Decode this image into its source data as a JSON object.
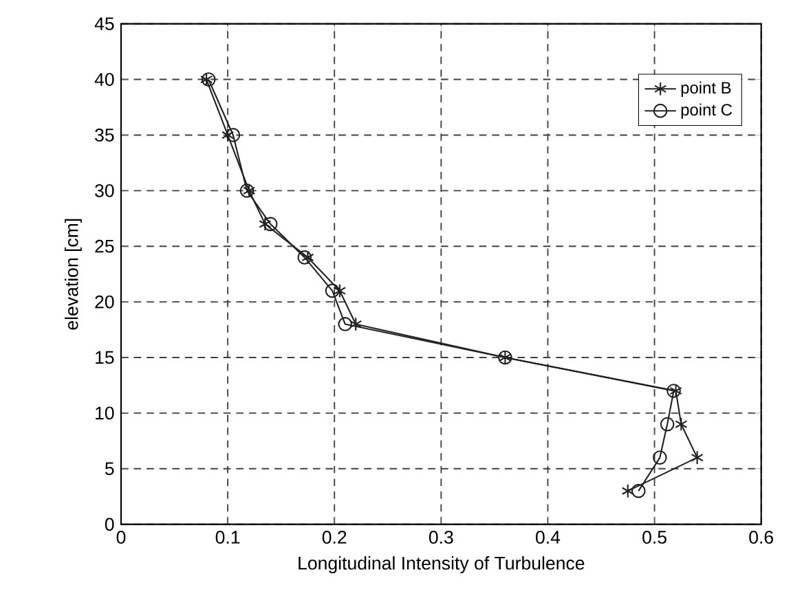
{
  "chart_data": {
    "type": "line",
    "xlabel": "Longitudinal Intensity of Turbulence",
    "ylabel": "elevation [cm]",
    "xlim": [
      0,
      0.6
    ],
    "ylim": [
      0,
      45
    ],
    "xticks": [
      0,
      0.1,
      0.2,
      0.3,
      0.4,
      0.5,
      0.6
    ],
    "yticks": [
      0,
      5,
      10,
      15,
      20,
      25,
      30,
      35,
      40,
      45
    ],
    "grid": true,
    "legend": "top right",
    "series": [
      {
        "name": "point B",
        "color": "#222222",
        "marker": "cross",
        "x": [
          0.08,
          0.1,
          0.12,
          0.135,
          0.175,
          0.205,
          0.22,
          0.36,
          0.52,
          0.525,
          0.54,
          0.475
        ],
        "values": [
          40,
          35,
          30,
          27,
          24,
          21,
          18,
          15,
          12,
          9,
          6,
          3
        ]
      },
      {
        "name": "point C",
        "color": "#222222",
        "marker": "circle",
        "x": [
          0.082,
          0.105,
          0.118,
          0.14,
          0.172,
          0.198,
          0.21,
          0.36,
          0.518,
          0.512,
          0.505,
          0.485
        ],
        "values": [
          40,
          35,
          30,
          27,
          24,
          21,
          18,
          15,
          12,
          9,
          6,
          3
        ]
      }
    ]
  }
}
